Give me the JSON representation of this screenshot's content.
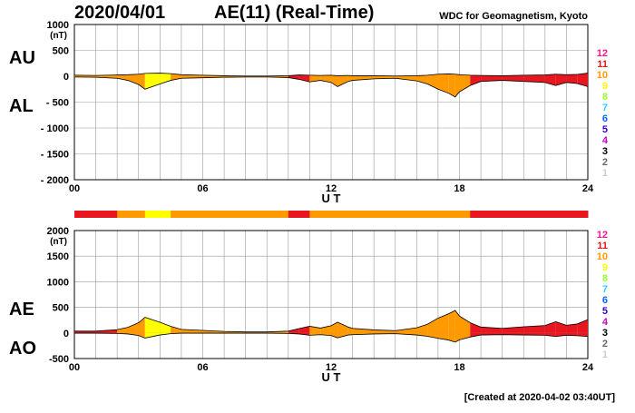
{
  "header": {
    "date": "2020/04/01",
    "title": "AE(11) (Real-Time)",
    "source": "WDC for Geomagnetism, Kyoto"
  },
  "footer": {
    "created": "[Created at 2020-04-02 03:40UT]"
  },
  "colors": {
    "grid": "#999999",
    "outline": "#000000",
    "level_colors": {
      "12": "#ff1493",
      "11": "#e8171f",
      "10": "#ff9900",
      "9": "#ffff00",
      "8": "#99ff33",
      "7": "#33ccff",
      "6": "#0066ff",
      "5": "#3300cc",
      "4": "#cc00cc",
      "3": "#000000",
      "2": "#666666",
      "1": "#cccccc"
    }
  },
  "chart_data": [
    {
      "type": "area",
      "panel": "AU/AL",
      "series_labels": [
        "AU",
        "AL"
      ],
      "unit_label": "(nT)",
      "xlabel": "U T",
      "x_ticks": [
        "00",
        "06",
        "12",
        "18",
        "24"
      ],
      "xlim": [
        0,
        24
      ],
      "ylim": [
        -2000,
        1000
      ],
      "y_ticks": [
        "1000",
        "500",
        "0",
        "- 500",
        "- 1000",
        "- 1500",
        "- 2000"
      ],
      "y_tick_values": [
        1000,
        500,
        0,
        -500,
        -1000,
        -1500,
        -2000
      ],
      "grid": true,
      "legend_levels": [
        "12",
        "11",
        "10",
        "9",
        "8",
        "7",
        "6",
        "5",
        "4",
        "3",
        "2",
        "1"
      ],
      "x": [
        0,
        1,
        2,
        2.5,
        3,
        3.3,
        4,
        4.5,
        5,
        6,
        7,
        8,
        9,
        10,
        10.5,
        11,
        11.5,
        12,
        12.3,
        12.8,
        13,
        14,
        15,
        16,
        16.5,
        17,
        17.5,
        17.8,
        18,
        18.5,
        19,
        20,
        21,
        22,
        22.5,
        23,
        23.5,
        24
      ],
      "upper": [
        20,
        15,
        25,
        30,
        40,
        55,
        60,
        50,
        30,
        20,
        10,
        5,
        5,
        10,
        25,
        20,
        15,
        20,
        10,
        15,
        10,
        10,
        5,
        10,
        20,
        40,
        45,
        40,
        30,
        20,
        15,
        10,
        20,
        25,
        40,
        30,
        35,
        60
      ],
      "lower": [
        -15,
        -20,
        -40,
        -80,
        -160,
        -250,
        -150,
        -80,
        -40,
        -30,
        -20,
        -15,
        -15,
        -25,
        -60,
        -110,
        -80,
        -120,
        -200,
        -100,
        -80,
        -50,
        -40,
        -90,
        -150,
        -250,
        -330,
        -400,
        -300,
        -180,
        -100,
        -80,
        -100,
        -120,
        -180,
        -120,
        -140,
        -200
      ],
      "upper_colors": [
        "10",
        "10",
        "10",
        "10",
        "10",
        "9",
        "9",
        "10",
        "10",
        "10",
        "10",
        "10",
        "10",
        "11",
        "11",
        "10",
        "10",
        "10",
        "10",
        "10",
        "10",
        "10",
        "10",
        "10",
        "10",
        "10",
        "10",
        "10",
        "10",
        "11",
        "11",
        "11",
        "11",
        "11",
        "11",
        "11",
        "11",
        "11"
      ]
    },
    {
      "type": "area",
      "panel": "AE/AO",
      "series_labels": [
        "AE",
        "AO"
      ],
      "unit_label": "(nT)",
      "xlabel": "U T",
      "x_ticks": [
        "00",
        "06",
        "12",
        "18",
        "24"
      ],
      "xlim": [
        0,
        24
      ],
      "ylim": [
        -500,
        2000
      ],
      "y_ticks": [
        "2000",
        "1500",
        "1000",
        "500",
        "0",
        "-500"
      ],
      "y_tick_values": [
        2000,
        1500,
        1000,
        500,
        0,
        -500
      ],
      "grid": true,
      "legend_levels": [
        "12",
        "11",
        "10",
        "9",
        "8",
        "7",
        "6",
        "5",
        "4",
        "3",
        "2",
        "1"
      ],
      "x": [
        0,
        1,
        2,
        2.5,
        3,
        3.3,
        4,
        4.5,
        5,
        6,
        7,
        8,
        9,
        10,
        10.5,
        11,
        11.5,
        12,
        12.3,
        12.8,
        13,
        14,
        15,
        16,
        16.5,
        17,
        17.5,
        17.8,
        18,
        18.5,
        19,
        20,
        21,
        22,
        22.5,
        23,
        23.5,
        24
      ],
      "upper": [
        35,
        35,
        65,
        110,
        200,
        305,
        210,
        130,
        70,
        50,
        30,
        20,
        20,
        35,
        85,
        130,
        95,
        140,
        210,
        115,
        90,
        60,
        45,
        100,
        170,
        290,
        375,
        440,
        330,
        200,
        115,
        90,
        120,
        145,
        220,
        150,
        175,
        260
      ],
      "lower": [
        -5,
        -5,
        -10,
        -20,
        -50,
        -100,
        -40,
        -15,
        -5,
        -5,
        -5,
        -5,
        -5,
        -10,
        -20,
        -45,
        -35,
        -50,
        -95,
        -40,
        -35,
        -20,
        -15,
        -40,
        -65,
        -105,
        -140,
        -180,
        -135,
        -80,
        -40,
        -35,
        -40,
        -45,
        -70,
        -45,
        -55,
        -70
      ],
      "color_band": [
        "11",
        "11",
        "10",
        "10",
        "10",
        "9",
        "9",
        "10",
        "10",
        "10",
        "10",
        "10",
        "10",
        "11",
        "11",
        "10",
        "10",
        "10",
        "10",
        "10",
        "10",
        "10",
        "10",
        "10",
        "10",
        "10",
        "10",
        "10",
        "10",
        "11",
        "11",
        "11",
        "11",
        "11",
        "11",
        "11",
        "11",
        "11"
      ]
    }
  ]
}
